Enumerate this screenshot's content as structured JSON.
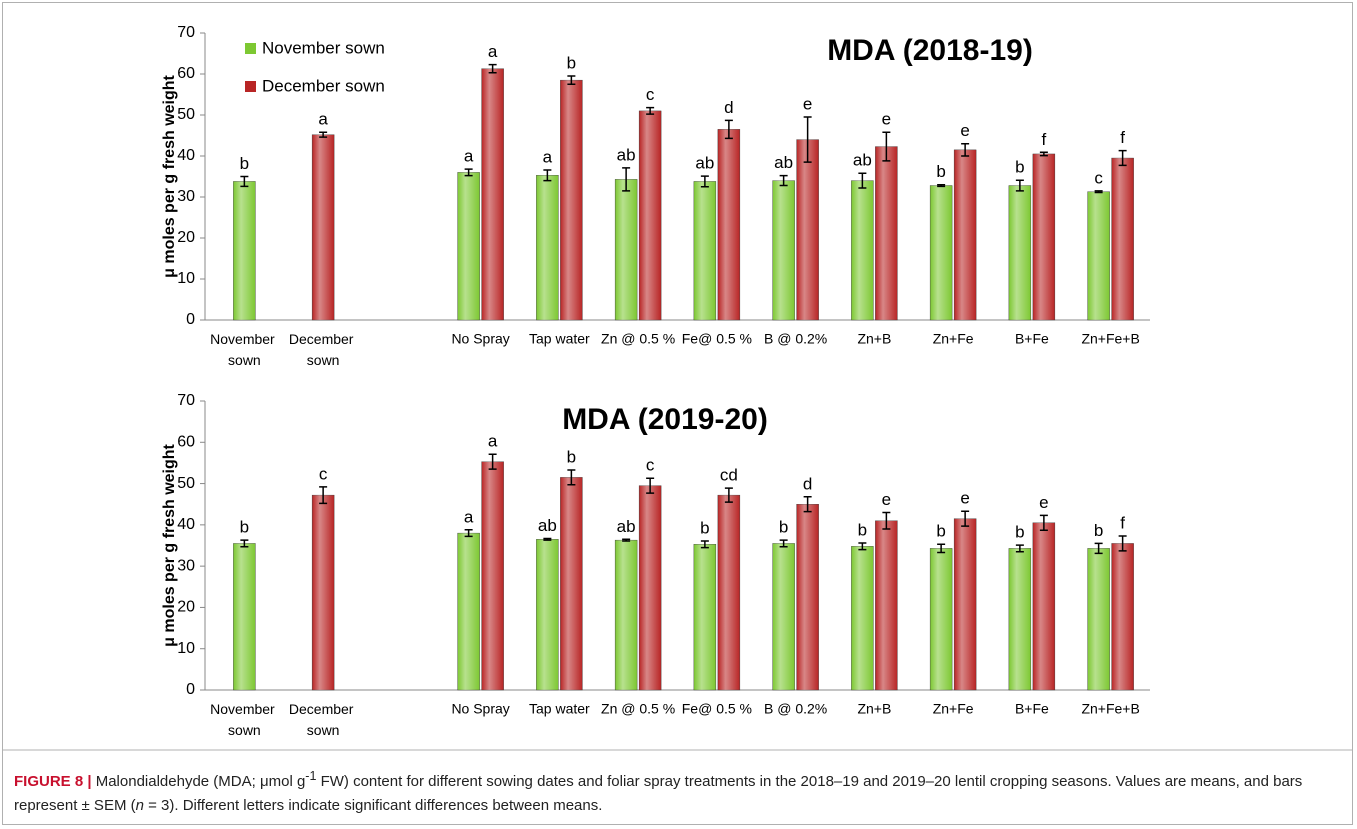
{
  "chart_data": [
    {
      "type": "bar",
      "title": "MDA (2018-19)",
      "y_label": "μ moles per g fresh weight",
      "categories": [
        "November sown",
        "December sown",
        null,
        "No Spray",
        "Tap water",
        "Zn @ 0.5 %",
        "Fe@ 0.5 %",
        "B @ 0.2%",
        "Zn+B",
        "Zn+Fe",
        "B+Fe",
        "Zn+Fe+B"
      ],
      "series": [
        {
          "name": "November sown",
          "color": "#7dc832",
          "values": [
            33.8,
            null,
            null,
            36,
            35.3,
            34.3,
            33.8,
            34,
            34,
            32.8,
            32.8,
            31.3
          ],
          "errors": [
            1.2,
            null,
            null,
            0.8,
            1.3,
            2.8,
            1.3,
            1.2,
            1.8,
            0.2,
            1.3,
            0.2
          ],
          "letters": [
            "b",
            null,
            null,
            "a",
            "a",
            "ab",
            "ab",
            "ab",
            "ab",
            "b",
            "b",
            "c"
          ]
        },
        {
          "name": "December sown",
          "color": "#b82525",
          "values": [
            null,
            45.2,
            null,
            61.3,
            58.5,
            51,
            46.5,
            44,
            42.3,
            41.5,
            40.5,
            39.5
          ],
          "errors": [
            null,
            0.6,
            null,
            1,
            1,
            0.8,
            2.2,
            5.5,
            3.5,
            1.5,
            0.4,
            1.8
          ],
          "letters": [
            null,
            "a",
            null,
            "a",
            "b",
            "c",
            "d",
            "e",
            "e",
            "e",
            "f",
            "f"
          ]
        }
      ],
      "ylim": [
        0,
        70
      ],
      "yticks": [
        0,
        10,
        20,
        30,
        40,
        50,
        60,
        70
      ],
      "legend": "upper left"
    },
    {
      "type": "bar",
      "title": "MDA (2019-20)",
      "y_label": "μ moles per g fresh weight",
      "categories": [
        "November sown",
        "December sown",
        null,
        "No Spray",
        "Tap water",
        "Zn @ 0.5 %",
        "Fe@ 0.5 %",
        "B @ 0.2%",
        "Zn+B",
        "Zn+Fe",
        "B+Fe",
        "Zn+Fe+B"
      ],
      "series": [
        {
          "name": "November sown",
          "color": "#7dc832",
          "values": [
            35.5,
            null,
            null,
            38,
            36.5,
            36.3,
            35.3,
            35.5,
            34.8,
            34.3,
            34.3,
            34.3
          ],
          "errors": [
            0.8,
            null,
            null,
            0.8,
            0.2,
            0.2,
            0.8,
            0.8,
            0.8,
            1,
            0.8,
            1.2
          ],
          "letters": [
            "b",
            null,
            null,
            "a",
            "ab",
            "ab",
            "b",
            "b",
            "b",
            "b",
            "b",
            "b"
          ]
        },
        {
          "name": "December sown",
          "color": "#b82525",
          "values": [
            null,
            47.2,
            null,
            55.3,
            51.5,
            49.5,
            47.2,
            45,
            41,
            41.5,
            40.5,
            35.5
          ],
          "errors": [
            null,
            2,
            null,
            1.8,
            1.8,
            1.8,
            1.7,
            1.8,
            2,
            1.8,
            1.8,
            1.8
          ],
          "letters": [
            null,
            "c",
            null,
            "a",
            "b",
            "c",
            "cd",
            "d",
            "e",
            "e",
            "e",
            "f"
          ]
        }
      ],
      "ylim": [
        0,
        70
      ],
      "yticks": [
        0,
        10,
        20,
        30,
        40,
        50,
        60,
        70
      ]
    }
  ],
  "caption": {
    "label": "FIGURE 8 |",
    "parts": [
      " Malondialdehyde (MDA; μmol g",
      "-1",
      " FW) content for different sowing dates and foliar spray treatments in the 2018–19 and 2019–20 lentil cropping seasons. Values are means, and bars represent ± SEM (",
      "n",
      " = 3). Different letters indicate significant differences between means."
    ]
  }
}
